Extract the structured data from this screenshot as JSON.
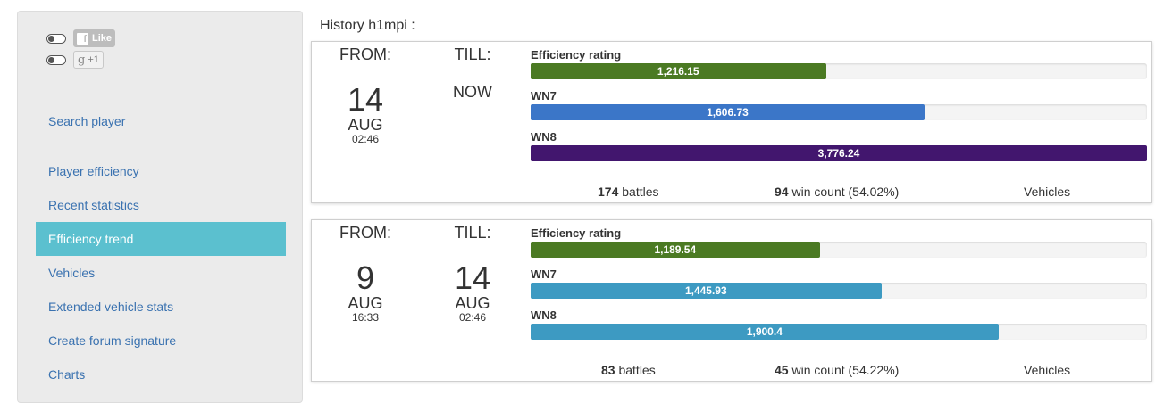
{
  "sidebar": {
    "social": {
      "fb_label": "Like",
      "gp_label": "+1"
    },
    "items": [
      {
        "label": "Search player",
        "active": false
      },
      {
        "label": "Player efficiency",
        "active": false
      },
      {
        "label": "Recent statistics",
        "active": false
      },
      {
        "label": "Efficiency trend",
        "active": true
      },
      {
        "label": "Vehicles",
        "active": false
      },
      {
        "label": "Extended vehicle stats",
        "active": false
      },
      {
        "label": "Create forum signature",
        "active": false
      },
      {
        "label": "Charts",
        "active": false
      }
    ]
  },
  "history": {
    "title": "History h1mpi :",
    "from_label": "FROM:",
    "till_label": "TILL:",
    "vehicles_label": "Vehicles",
    "battles_suffix": "battles",
    "wins_suffix": "win count",
    "periods": [
      {
        "from": {
          "day": "14",
          "month": "AUG",
          "time": "02:46"
        },
        "till_now": "NOW",
        "metrics": [
          {
            "label": "Efficiency rating",
            "value": "1,216.15",
            "fraction": 0.479,
            "color": "#4b7a23"
          },
          {
            "label": "WN7",
            "value": "1,606.73",
            "fraction": 0.639,
            "color": "#3b76c8"
          },
          {
            "label": "WN8",
            "value": "3,776.24",
            "fraction": 1.0,
            "color": "#42166e"
          }
        ],
        "battles": "174",
        "wins": "94",
        "win_pct": "(54.02%)"
      },
      {
        "from": {
          "day": "9",
          "month": "AUG",
          "time": "16:33"
        },
        "till": {
          "day": "14",
          "month": "AUG",
          "time": "02:46"
        },
        "metrics": [
          {
            "label": "Efficiency rating",
            "value": "1,189.54",
            "fraction": 0.469,
            "color": "#4b7a23"
          },
          {
            "label": "WN7",
            "value": "1,445.93",
            "fraction": 0.569,
            "color": "#3d9ac2"
          },
          {
            "label": "WN8",
            "value": "1,900.4",
            "fraction": 0.759,
            "color": "#3d9ac2"
          }
        ],
        "battles": "83",
        "wins": "45",
        "win_pct": "(54.22%)"
      }
    ]
  }
}
